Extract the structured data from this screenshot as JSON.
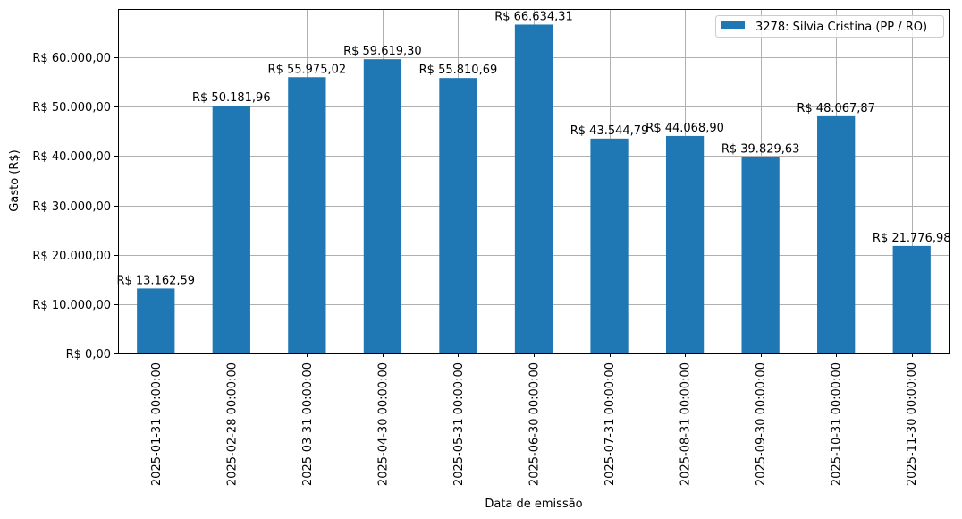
{
  "chart_data": {
    "type": "bar",
    "title": "",
    "xlabel": "Data de emissão",
    "ylabel": "Gasto (R$)",
    "ylim": [
      0,
      69800
    ],
    "yticks": [
      0,
      10000,
      20000,
      30000,
      40000,
      50000,
      60000
    ],
    "ytick_labels": [
      "R$ 0,00",
      "R$ 10.000,00",
      "R$ 20.000,00",
      "R$ 30.000,00",
      "R$ 40.000,00",
      "R$ 50.000,00",
      "R$ 60.000,00"
    ],
    "grid": true,
    "legend_position": "upper right",
    "bar_color": "#1f77b4",
    "categories": [
      "2025-01-31 00:00:00",
      "2025-02-28 00:00:00",
      "2025-03-31 00:00:00",
      "2025-04-30 00:00:00",
      "2025-05-31 00:00:00",
      "2025-06-30 00:00:00",
      "2025-07-31 00:00:00",
      "2025-08-31 00:00:00",
      "2025-09-30 00:00:00",
      "2025-10-31 00:00:00",
      "2025-11-30 00:00:00"
    ],
    "series": [
      {
        "name": "3278: Silvia Cristina (PP / RO)",
        "values": [
          13162.59,
          50181.96,
          55975.02,
          59619.3,
          55810.69,
          66634.31,
          43544.79,
          44068.9,
          39829.63,
          48067.87,
          21776.98
        ],
        "labels": [
          "R$ 13.162,59",
          "R$ 50.181,96",
          "R$ 55.975,02",
          "R$ 59.619,30",
          "R$ 55.810,69",
          "R$ 66.634,31",
          "R$ 43.544,79",
          "R$ 44.068,90",
          "R$ 39.829,63",
          "R$ 48.067,87",
          "R$ 21.776,98"
        ]
      }
    ]
  }
}
